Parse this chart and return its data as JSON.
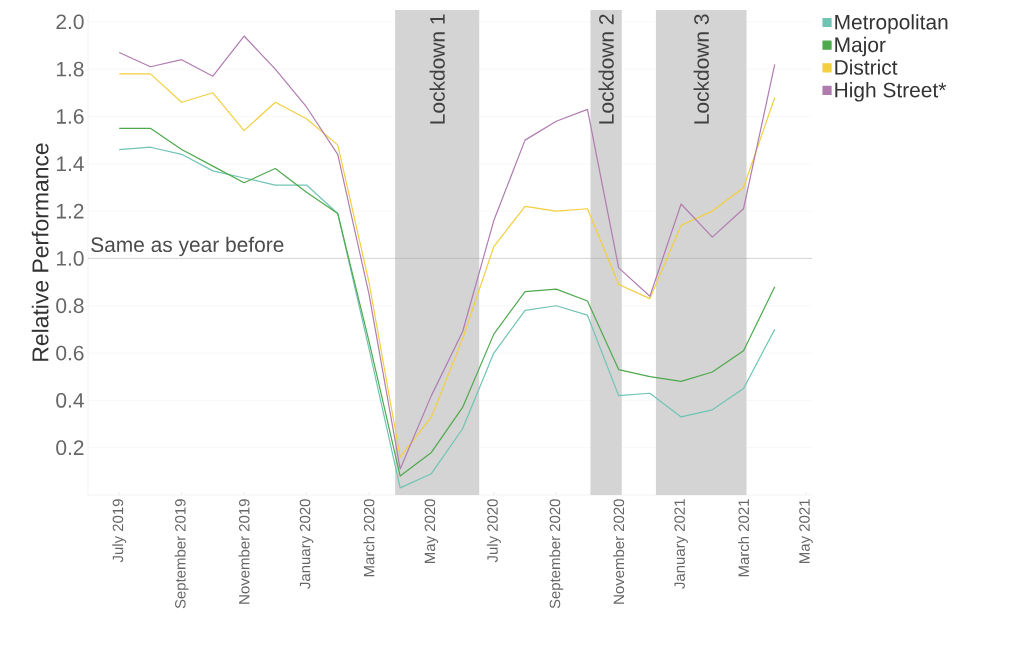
{
  "chart_data": {
    "type": "line",
    "ylabel": "Relative Performance",
    "x": [
      "2019-07",
      "2019-08",
      "2019-09",
      "2019-10",
      "2019-11",
      "2019-12",
      "2020-01",
      "2020-02",
      "2020-03",
      "2020-04",
      "2020-05",
      "2020-06",
      "2020-07",
      "2020-08",
      "2020-09",
      "2020-10",
      "2020-11",
      "2020-12",
      "2021-01",
      "2021-02",
      "2021-03",
      "2021-04"
    ],
    "series": [
      {
        "name": "Metropolitan",
        "color": "#70c4b4",
        "values": [
          1.46,
          1.47,
          1.44,
          1.37,
          1.34,
          1.31,
          1.31,
          1.19,
          0.62,
          0.03,
          0.09,
          0.28,
          0.6,
          0.78,
          0.8,
          0.76,
          0.42,
          0.43,
          0.33,
          0.36,
          0.45,
          0.7
        ]
      },
      {
        "name": "Major",
        "color": "#4ea94e",
        "values": [
          1.55,
          1.55,
          1.46,
          1.39,
          1.32,
          1.38,
          1.28,
          1.19,
          0.65,
          0.08,
          0.18,
          0.37,
          0.68,
          0.86,
          0.87,
          0.82,
          0.53,
          0.5,
          0.48,
          0.52,
          0.61,
          0.88
        ]
      },
      {
        "name": "District",
        "color": "#f2cf3e",
        "values": [
          1.78,
          1.78,
          1.66,
          1.7,
          1.54,
          1.66,
          1.59,
          1.48,
          0.9,
          0.16,
          0.33,
          0.66,
          1.05,
          1.22,
          1.2,
          1.21,
          0.89,
          0.83,
          1.14,
          1.2,
          1.3,
          1.68
        ]
      },
      {
        "name": "High Street*",
        "color": "#b07cb0",
        "values": [
          1.87,
          1.81,
          1.84,
          1.77,
          1.94,
          1.8,
          1.64,
          1.44,
          0.85,
          0.11,
          0.42,
          0.69,
          1.16,
          1.5,
          1.58,
          1.63,
          0.96,
          0.84,
          1.23,
          1.09,
          1.21,
          1.82
        ]
      }
    ],
    "xlim": [
      "2019-06-01",
      "2021-05-07"
    ],
    "xticks": [
      {
        "value": "2019-07",
        "label": "July 2019"
      },
      {
        "value": "2019-09",
        "label": "September 2019"
      },
      {
        "value": "2019-11",
        "label": "November 2019"
      },
      {
        "value": "2020-01",
        "label": "January 2020"
      },
      {
        "value": "2020-03",
        "label": "March 2020"
      },
      {
        "value": "2020-05",
        "label": "May 2020"
      },
      {
        "value": "2020-07",
        "label": "July 2020"
      },
      {
        "value": "2020-09",
        "label": "September 2020"
      },
      {
        "value": "2020-11",
        "label": "November 2020"
      },
      {
        "value": "2021-01",
        "label": "January 2021"
      },
      {
        "value": "2021-03",
        "label": "March 2021"
      },
      {
        "value": "2021-05",
        "label": "May 2021"
      }
    ],
    "ylim": [
      0,
      2.05
    ],
    "yticks": [
      0.2,
      0.4,
      0.6,
      0.8,
      {
        "value": 1,
        "label": "1.0"
      },
      1.2,
      1.4,
      1.6,
      1.8,
      {
        "value": 2,
        "label": "2.0"
      }
    ],
    "ref_lines": [
      {
        "axis": "y",
        "value": 1.0,
        "label": "Same as year before",
        "color": "#a0a0a0"
      }
    ],
    "bands": [
      {
        "axis": "x",
        "from": "2020-03-27",
        "to": "2020-06-17",
        "label": "Lockdown 1",
        "color": "#d4d4d4"
      },
      {
        "axis": "x",
        "from": "2020-10-04",
        "to": "2020-11-04",
        "label": "Lockdown 2",
        "color": "#d4d4d4"
      },
      {
        "axis": "x",
        "from": "2020-12-07",
        "to": "2021-03-04",
        "label": "Lockdown 3",
        "color": "#d4d4d4"
      }
    ],
    "grid": "y",
    "legend": "right",
    "marker": "none",
    "line_style": "solid"
  }
}
